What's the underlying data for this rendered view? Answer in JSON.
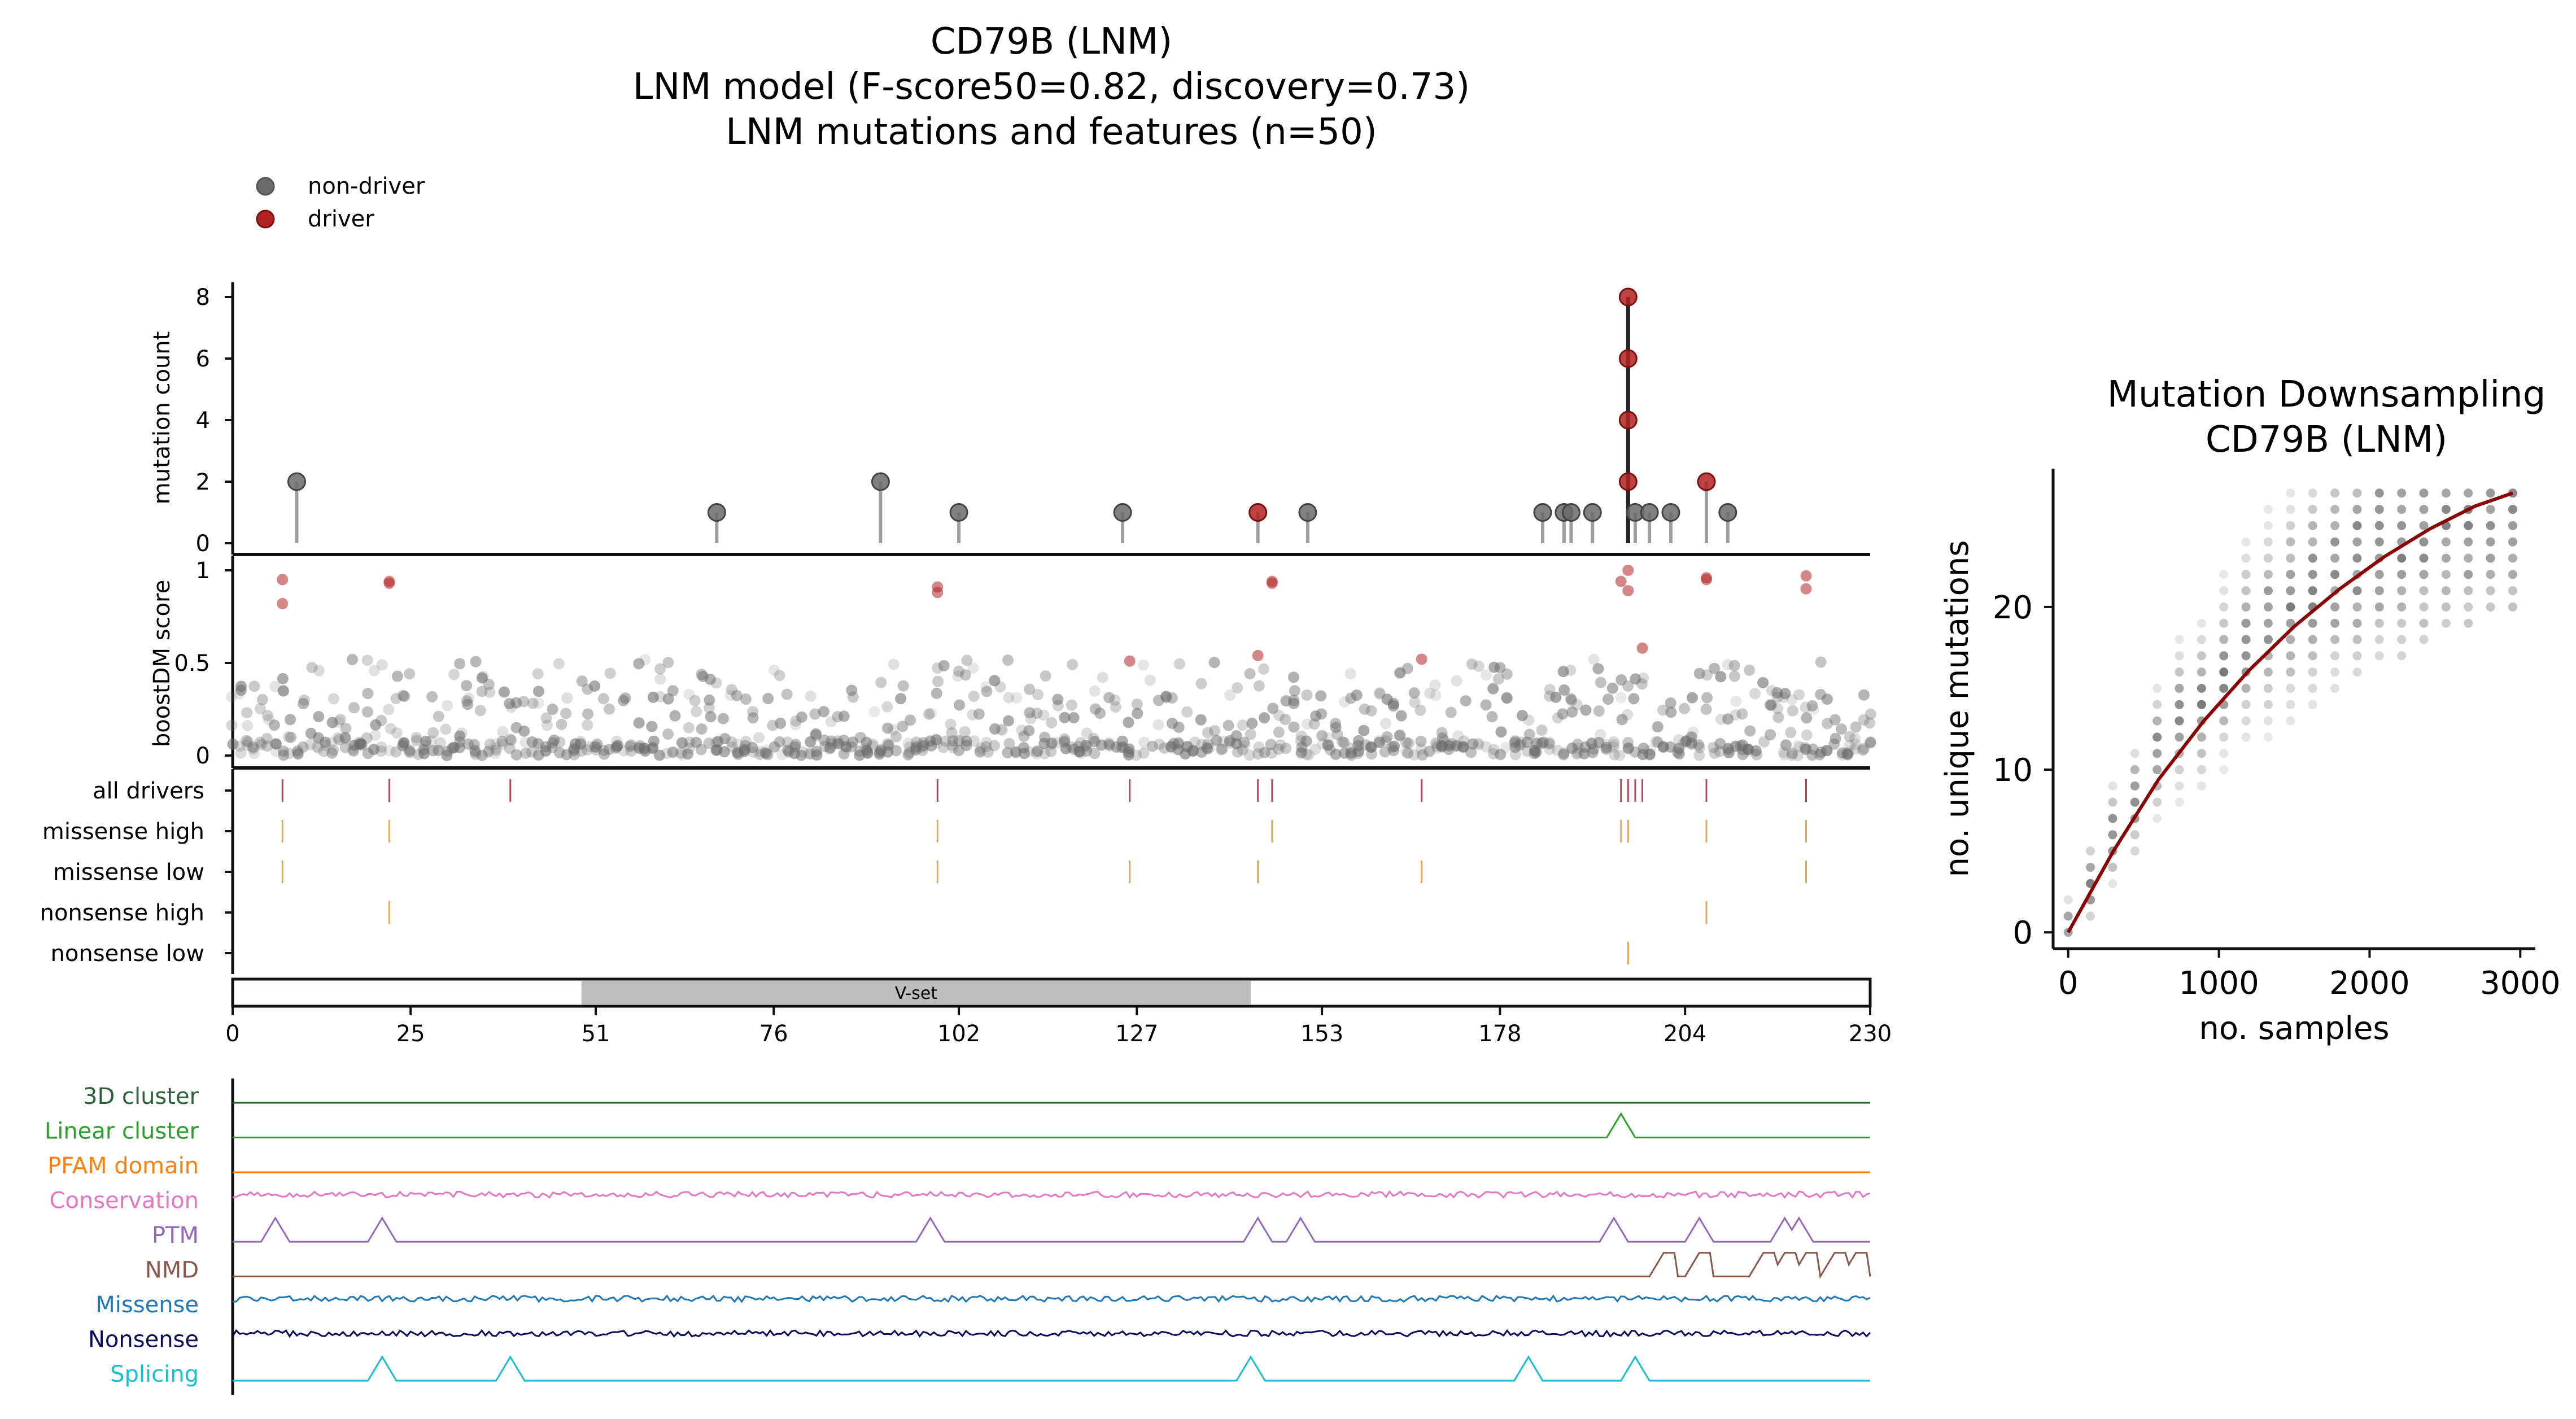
{
  "title": {
    "line1": "CD79B (LNM)",
    "line2": "LNM model (F-score50=0.82, discovery=0.73)",
    "line3": "LNM mutations and features (n=50)"
  },
  "legend": {
    "nondriver_label": "non-driver",
    "driver_label": "driver",
    "nondriver_color": "#6b6b6b",
    "driver_color": "#b22222"
  },
  "colors": {
    "driver": "#b22222",
    "nondriver": "#6b6b6b",
    "track_driver": "#b3475a",
    "track_missense": "#e1a95f",
    "domain_fill": "#bdbdbd",
    "downsampling_line": "#8b0000"
  },
  "chart_data": [
    {
      "type": "scatter",
      "name": "mutation-lollipop",
      "ylabel": "mutation count",
      "yticks": [
        0,
        2,
        4,
        6,
        8
      ],
      "ylim": [
        0,
        8.6
      ],
      "xlim": [
        0,
        230
      ],
      "points": [
        {
          "x": 9,
          "y": 2,
          "driver": false
        },
        {
          "x": 68,
          "y": 1,
          "driver": false
        },
        {
          "x": 91,
          "y": 2,
          "driver": false
        },
        {
          "x": 102,
          "y": 1,
          "driver": false
        },
        {
          "x": 125,
          "y": 1,
          "driver": false
        },
        {
          "x": 144,
          "y": 1,
          "driver": true
        },
        {
          "x": 151,
          "y": 1,
          "driver": false
        },
        {
          "x": 184,
          "y": 1,
          "driver": false
        },
        {
          "x": 187,
          "y": 1,
          "driver": false
        },
        {
          "x": 188,
          "y": 1,
          "driver": false
        },
        {
          "x": 191,
          "y": 1,
          "driver": false
        },
        {
          "x": 196,
          "y": 8,
          "driver": true
        },
        {
          "x": 196,
          "y": 6,
          "driver": true
        },
        {
          "x": 196,
          "y": 4,
          "driver": true
        },
        {
          "x": 196,
          "y": 2,
          "driver": true
        },
        {
          "x": 197,
          "y": 1,
          "driver": false
        },
        {
          "x": 199,
          "y": 1,
          "driver": false
        },
        {
          "x": 202,
          "y": 1,
          "driver": false
        },
        {
          "x": 207,
          "y": 2,
          "driver": true
        },
        {
          "x": 210,
          "y": 1,
          "driver": false
        }
      ]
    },
    {
      "type": "scatter",
      "name": "boostdm-score",
      "ylabel": "boostDM score",
      "yticks": [
        0,
        0.5,
        1
      ],
      "ylim": [
        -0.02,
        1.05
      ],
      "xlim": [
        0,
        230
      ],
      "driver_points": [
        [
          7,
          0.95
        ],
        [
          7,
          0.82
        ],
        [
          22,
          0.94
        ],
        [
          22,
          0.93
        ],
        [
          99,
          0.91
        ],
        [
          99,
          0.88
        ],
        [
          126,
          0.51
        ],
        [
          144,
          0.54
        ],
        [
          146,
          0.94
        ],
        [
          146,
          0.93
        ],
        [
          167,
          0.52
        ],
        [
          195,
          0.94
        ],
        [
          196,
          1.0
        ],
        [
          196,
          0.89
        ],
        [
          198,
          0.58
        ],
        [
          207,
          0.96
        ],
        [
          207,
          0.95
        ],
        [
          221,
          0.97
        ],
        [
          221,
          0.9
        ]
      ]
    },
    {
      "type": "table",
      "name": "driver-tracks",
      "rows": [
        {
          "label": "all drivers",
          "color": "#b3475a",
          "positions": [
            7,
            22,
            39,
            99,
            126,
            144,
            146,
            167,
            195,
            196,
            197,
            198,
            207,
            221
          ]
        },
        {
          "label": "missense high",
          "color": "#e1a95f",
          "positions": [
            7,
            22,
            99,
            146,
            195,
            196,
            207,
            221
          ]
        },
        {
          "label": "missense low",
          "color": "#e1a95f",
          "positions": [
            7,
            99,
            126,
            144,
            167,
            221
          ]
        },
        {
          "label": "nonsense high",
          "color": "#e1a95f",
          "positions": [
            22,
            207
          ]
        },
        {
          "label": "nonsense low",
          "color": "#e1a95f",
          "positions": [
            196
          ]
        }
      ],
      "domain": {
        "label": "V-set",
        "start": 49,
        "end": 143
      },
      "xticks": [
        0,
        25,
        51,
        76,
        102,
        127,
        153,
        178,
        204,
        230
      ]
    },
    {
      "type": "line",
      "name": "feature-tracks",
      "series": [
        {
          "name": "3D cluster",
          "color": "#2f5f3a",
          "shape": "flat"
        },
        {
          "name": "Linear cluster",
          "color": "#2ca02c",
          "shape": "peaks",
          "peaks": [
            195
          ]
        },
        {
          "name": "PFAM domain",
          "color": "#ff7f0e",
          "shape": "flat"
        },
        {
          "name": "Conservation",
          "color": "#e377c2",
          "shape": "noisy"
        },
        {
          "name": "PTM",
          "color": "#9467bd",
          "shape": "peaks",
          "peaks": [
            6,
            21,
            98,
            144,
            150,
            194,
            206,
            218,
            220
          ]
        },
        {
          "name": "NMD",
          "color": "#8c564b",
          "shape": "steps",
          "peaks": [
            201,
            206,
            215,
            218,
            221,
            225,
            228
          ]
        },
        {
          "name": "Missense",
          "color": "#1f77b4",
          "shape": "noisy"
        },
        {
          "name": "Nonsense",
          "color": "#0b0b5e",
          "shape": "noisy"
        },
        {
          "name": "Splicing",
          "color": "#17becf",
          "shape": "peaks",
          "peaks": [
            21,
            39,
            143,
            182,
            197
          ]
        }
      ]
    },
    {
      "type": "scatter",
      "name": "mutation-downsampling",
      "title": "Mutation Downsampling",
      "subtitle": "CD79B (LNM)",
      "xlabel": "no. samples",
      "ylabel": "no. unique mutations",
      "xticks": [
        0,
        1000,
        2000,
        3000
      ],
      "yticks": [
        0,
        10,
        20
      ],
      "xlim": [
        -100,
        3100
      ],
      "ylim": [
        -1,
        28.5
      ],
      "fit_curve": [
        [
          0,
          0
        ],
        [
          300,
          5
        ],
        [
          600,
          9.4
        ],
        [
          900,
          13
        ],
        [
          1200,
          16.1
        ],
        [
          1500,
          18.8
        ],
        [
          1800,
          21.1
        ],
        [
          2100,
          23.1
        ],
        [
          2400,
          24.8
        ],
        [
          2700,
          26.2
        ],
        [
          2950,
          27
        ]
      ]
    }
  ]
}
